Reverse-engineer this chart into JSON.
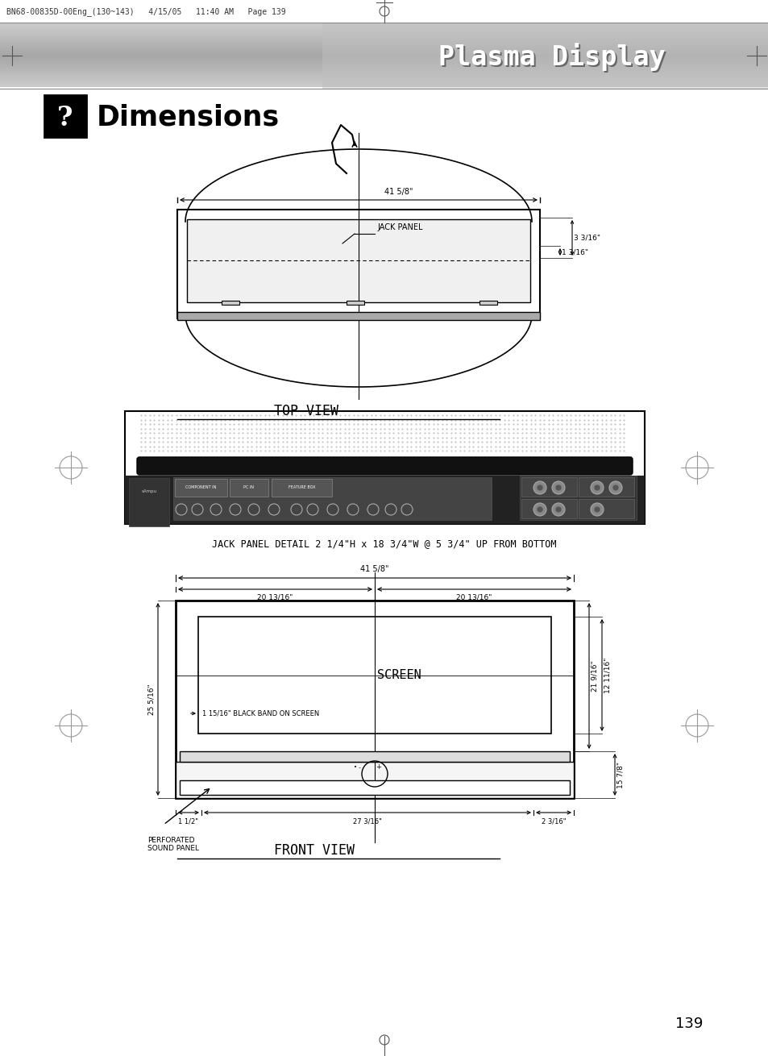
{
  "bg_color": "#ffffff",
  "header_file_text": "BN68-00835D-00Eng_(130~143)   4/15/05   11:40 AM   Page 139",
  "header_text": "Plasma Display",
  "title_text": "Dimensions",
  "top_view_label": "TOP VIEW",
  "jack_panel_label": "JACK PANEL DETAIL 2 1/4\"H x 18 3/4\"W @ 5 3/4\" UP FROM BOTTOM",
  "front_view_label": "FRONT VIEW",
  "page_number": "139",
  "dim_41_5_8": "41 5/8\"",
  "dim_jack_panel": "JACK PANEL",
  "dim_3_3_16": "3 3/16\"",
  "dim_1_3_16": "1 3/16\"",
  "dim_20_13_16_left": "20 13/16\"",
  "dim_20_13_16_right": "20 13/16\"",
  "dim_41_5_8_front": "41 5/8\"",
  "dim_25_5_16": "25 5/16\"",
  "dim_12_11_16": "12 11/16\"",
  "dim_21_9_16": "21 9/16\"",
  "dim_15_7_8": "15 7/8\"",
  "dim_1_15_16_band": "1 15/16\" BLACK BAND ON SCREEN",
  "dim_screen": "SCREEN",
  "dim_1_1_2": "1 1/2\"",
  "dim_27_3_16": "27 3/16\"",
  "dim_2_3_16": "2 3/16\"",
  "dim_perf": "PERFORATED\nSOUND PANEL"
}
